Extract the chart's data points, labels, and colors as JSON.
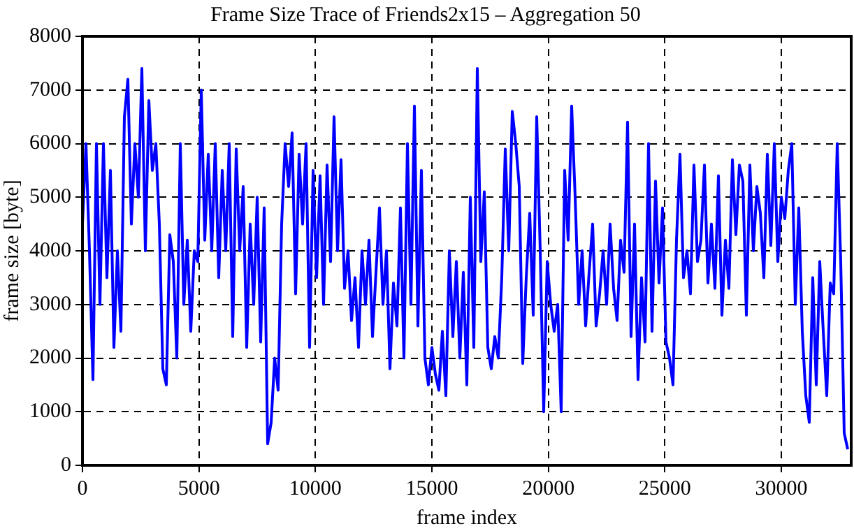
{
  "chart_data": {
    "type": "line",
    "title": "Frame Size Trace of Friends2x15 – Aggregation 50",
    "xlabel": "frame index",
    "ylabel": "frame size [byte]",
    "xlim": [
      0,
      33000
    ],
    "xticks": [
      0,
      5000,
      10000,
      15000,
      20000,
      25000,
      30000
    ],
    "ylim": [
      0,
      8000
    ],
    "yticks": [
      0,
      1000,
      2000,
      3000,
      4000,
      5000,
      6000,
      7000,
      8000
    ],
    "grid": true,
    "legend": false,
    "marker": "none",
    "line_style": "solid",
    "series": [
      {
        "color": "#0000ff",
        "x": [
          0,
          150,
          300,
          450,
          600,
          750,
          900,
          1050,
          1200,
          1350,
          1500,
          1650,
          1800,
          1950,
          2100,
          2250,
          2400,
          2550,
          2700,
          2850,
          3000,
          3150,
          3300,
          3450,
          3600,
          3750,
          3900,
          4050,
          4200,
          4350,
          4500,
          4650,
          4800,
          4950,
          5100,
          5250,
          5400,
          5550,
          5700,
          5850,
          6000,
          6150,
          6300,
          6450,
          6600,
          6750,
          6900,
          7050,
          7200,
          7350,
          7500,
          7650,
          7800,
          7950,
          8100,
          8250,
          8400,
          8550,
          8700,
          8850,
          9000,
          9150,
          9300,
          9450,
          9600,
          9750,
          9900,
          10050,
          10200,
          10350,
          10500,
          10650,
          10800,
          10950,
          11100,
          11250,
          11400,
          11550,
          11700,
          11850,
          12000,
          12150,
          12300,
          12450,
          12600,
          12750,
          12900,
          13050,
          13200,
          13350,
          13500,
          13650,
          13800,
          13950,
          14100,
          14250,
          14400,
          14550,
          14700,
          14850,
          15000,
          15150,
          15300,
          15450,
          15600,
          15750,
          15900,
          16050,
          16200,
          16350,
          16500,
          16650,
          16800,
          16950,
          17100,
          17250,
          17400,
          17550,
          17700,
          17850,
          18000,
          18150,
          18300,
          18450,
          18600,
          18750,
          18900,
          19050,
          19200,
          19350,
          19500,
          19650,
          19800,
          19950,
          20100,
          20250,
          20400,
          20550,
          20700,
          20850,
          21000,
          21150,
          21300,
          21450,
          21600,
          21750,
          21900,
          22050,
          22200,
          22350,
          22500,
          22650,
          22800,
          22950,
          23100,
          23250,
          23400,
          23550,
          23700,
          23850,
          24000,
          24150,
          24300,
          24450,
          24600,
          24750,
          24900,
          25050,
          25200,
          25350,
          25500,
          25650,
          25800,
          25950,
          26100,
          26250,
          26400,
          26550,
          26700,
          26850,
          27000,
          27150,
          27300,
          27450,
          27600,
          27750,
          27900,
          28050,
          28200,
          28350,
          28500,
          28650,
          28800,
          28950,
          29100,
          29250,
          29400,
          29550,
          29700,
          29850,
          30000,
          30150,
          30300,
          30450,
          30600,
          30750,
          30900,
          31050,
          31200,
          31350,
          31500,
          31650,
          31800,
          31950,
          32100,
          32250,
          32400,
          32550,
          32700,
          32850
        ],
        "values": [
          4500,
          6000,
          4000,
          1600,
          6000,
          3000,
          6000,
          3500,
          5500,
          2200,
          4000,
          2500,
          6500,
          7200,
          4500,
          6000,
          5000,
          7400,
          4000,
          6800,
          5500,
          6000,
          4500,
          1800,
          1500,
          4300,
          3800,
          2000,
          6000,
          3000,
          4200,
          2500,
          4000,
          3800,
          7000,
          4200,
          5800,
          4000,
          6000,
          3500,
          5500,
          4000,
          6000,
          2400,
          5900,
          4000,
          5200,
          2200,
          4500,
          3000,
          5000,
          2300,
          4800,
          400,
          800,
          2000,
          1400,
          4500,
          6000,
          5200,
          6200,
          3200,
          5800,
          4500,
          6000,
          2200,
          5500,
          3500,
          5400,
          3000,
          5600,
          3800,
          6500,
          4000,
          5700,
          3300,
          4000,
          2700,
          3500,
          2200,
          4000,
          3000,
          4200,
          2400,
          3600,
          4800,
          3000,
          4000,
          1800,
          3400,
          2600,
          4800,
          2000,
          6000,
          3000,
          6700,
          2600,
          5500,
          2000,
          1500,
          2200,
          1700,
          1400,
          2500,
          1300,
          4000,
          2400,
          3800,
          2000,
          3600,
          1500,
          5000,
          2200,
          7400,
          3800,
          5100,
          2200,
          1800,
          2400,
          2000,
          3500,
          5900,
          4000,
          6600,
          6000,
          5200,
          1900,
          3500,
          4700,
          2800,
          6500,
          4000,
          1000,
          3800,
          3000,
          2500,
          3000,
          1000,
          5500,
          4200,
          6700,
          5000,
          3000,
          4000,
          2600,
          3600,
          4500,
          2600,
          3200,
          4000,
          3000,
          4500,
          3300,
          2700,
          4200,
          3600,
          6400,
          2400,
          4500,
          1600,
          3500,
          2300,
          6000,
          2500,
          5300,
          3400,
          4800,
          2300,
          2000,
          1500,
          4200,
          5800,
          3500,
          4000,
          3200,
          5600,
          3800,
          4200,
          5600,
          3400,
          4500,
          3300,
          5400,
          2800,
          4200,
          3300,
          5700,
          4300,
          5600,
          5300,
          2800,
          5600,
          4000,
          5200,
          4700,
          3500,
          5800,
          4100,
          6000,
          3800,
          5000,
          4600,
          5500,
          6000,
          3000,
          4800,
          2500,
          1300,
          800,
          3500,
          1500,
          3800,
          2500,
          1300,
          3400,
          3200,
          6000,
          3800,
          600,
          300
        ]
      }
    ]
  }
}
